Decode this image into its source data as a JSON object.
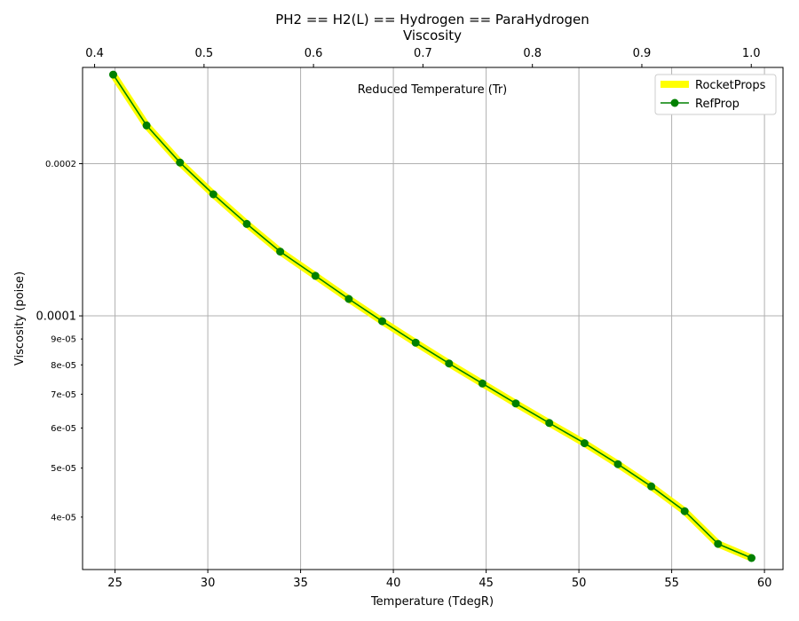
{
  "chart_data": {
    "type": "line",
    "title": "PH2 == H2(L) == Hydrogen == ParaHydrogen",
    "subtitle": "Viscosity",
    "xlabel": "Temperature (TdegR)",
    "ylabel": "Viscosity (poise)",
    "x2label": "Reduced Temperature (Tr)",
    "xlim": [
      23.25,
      61.0
    ],
    "ylim": [
      3.15e-05,
      0.00031
    ],
    "yscale": "log",
    "x2lim": [
      0.389,
      1.029
    ],
    "grid": true,
    "legend_position": "top-right",
    "x_ticks": [
      "25",
      "30",
      "35",
      "40",
      "45",
      "50",
      "55",
      "60"
    ],
    "x_tick_values": [
      25,
      30,
      35,
      40,
      45,
      50,
      55,
      60
    ],
    "x2_ticks": [
      "0.4",
      "0.5",
      "0.6",
      "0.7",
      "0.8",
      "0.9",
      "1.0"
    ],
    "x2_tick_values": [
      0.4,
      0.5,
      0.6,
      0.7,
      0.8,
      0.9,
      1.0
    ],
    "y_major_ticks": [
      "0.0001",
      "0.0002"
    ],
    "y_major_values": [
      0.0001,
      0.0002
    ],
    "y_minor_ticks": [
      "4e-05",
      "5e-05",
      "6e-05",
      "7e-05",
      "8e-05",
      "9e-05"
    ],
    "y_minor_values": [
      4e-05,
      5e-05,
      6e-05,
      7e-05,
      8e-05,
      9e-05
    ],
    "x": [
      24.9,
      26.7,
      28.5,
      30.3,
      32.1,
      33.9,
      35.8,
      37.6,
      39.4,
      41.2,
      43.0,
      44.8,
      46.6,
      48.4,
      50.3,
      52.1,
      53.9,
      55.7,
      57.5,
      59.3
    ],
    "series": [
      {
        "name": "RocketProps",
        "color": "#ffff00",
        "style": "thick-line",
        "values": [
          0.0003,
          0.000238,
          0.000201,
          0.000174,
          0.000152,
          0.000134,
          0.00012,
          0.000108,
          9.76e-05,
          8.85e-05,
          8.05e-05,
          7.35e-05,
          6.71e-05,
          6.14e-05,
          5.6e-05,
          5.09e-05,
          4.6e-05,
          4.11e-05,
          3.54e-05,
          3.32e-05
        ]
      },
      {
        "name": "RefProp",
        "color": "#008000",
        "style": "line-with-markers",
        "values": [
          0.0003,
          0.000238,
          0.000201,
          0.000174,
          0.000152,
          0.000134,
          0.00012,
          0.000108,
          9.76e-05,
          8.85e-05,
          8.05e-05,
          7.35e-05,
          6.71e-05,
          6.14e-05,
          5.6e-05,
          5.09e-05,
          4.6e-05,
          4.11e-05,
          3.54e-05,
          3.32e-05
        ]
      }
    ]
  }
}
